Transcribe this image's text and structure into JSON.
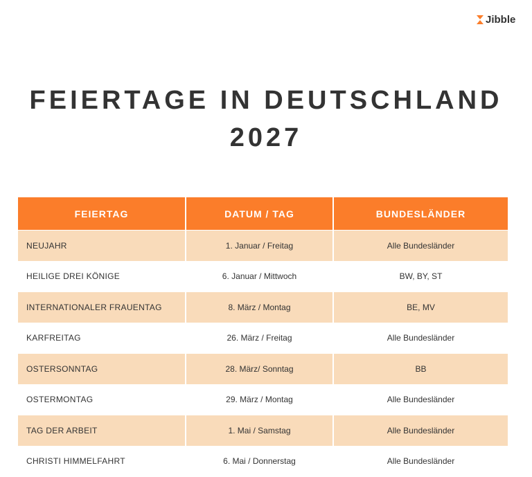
{
  "logo": {
    "text": "Jibble",
    "icon": "hourglass-icon",
    "color": "#fb7d2a"
  },
  "title": {
    "line1": "FEIERTAGE IN DEUTSCHLAND",
    "line2": "2027"
  },
  "table": {
    "headers": [
      "FEIERTAG",
      "DATUM / TAG",
      "BUNDESLÄNDER"
    ],
    "rows": [
      [
        "NEUJAHR",
        "1. Januar / Freitag",
        "Alle Bundesländer"
      ],
      [
        "HEILIGE DREI KÖNIGE",
        "6. Januar / Mittwoch",
        "BW, BY, ST"
      ],
      [
        "INTERNATIONALER FRAUENTAG",
        "8. März / Montag",
        "BE, MV"
      ],
      [
        "KARFREITAG",
        "26. März / Freitag",
        "Alle Bundesländer"
      ],
      [
        "OSTERSONNTAG",
        "28. März/ Sonntag",
        "BB"
      ],
      [
        "OSTERMONTAG",
        "29. März / Montag",
        "Alle Bundesländer"
      ],
      [
        "TAG DER ARBEIT",
        "1. Mai / Samstag",
        "Alle Bundesländer"
      ],
      [
        "CHRISTI HIMMELFAHRT",
        "6. Mai / Donnerstag",
        "Alle Bundesländer"
      ]
    ]
  },
  "colors": {
    "header": "#fb7d2a",
    "alt_row": "#f9dbba"
  }
}
